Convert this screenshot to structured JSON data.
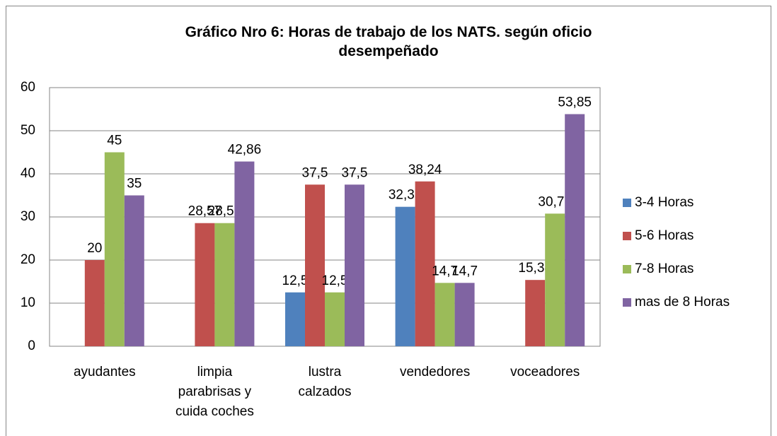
{
  "chart_data": {
    "type": "bar",
    "title": "Gráfico Nro 6: Horas de trabajo de los NATS. según oficio desempeñado",
    "categories": [
      "ayudantes",
      "limpia parabrisas y cuida coches",
      "lustra calzados",
      "vendedores",
      "voceadores"
    ],
    "series": [
      {
        "name": "3-4 Horas",
        "color": "#4f81bd",
        "values": [
          null,
          null,
          12.5,
          32.35,
          null
        ],
        "value_labels": [
          null,
          null,
          "12,5",
          "32,35",
          null
        ]
      },
      {
        "name": "5-6 Horas",
        "color": "#c0504d",
        "values": [
          20,
          28.57,
          37.5,
          38.24,
          15.38
        ],
        "value_labels": [
          "20",
          "28,57",
          "37,5",
          "38,24",
          "15,38"
        ]
      },
      {
        "name": "7-8 Horas",
        "color": "#9bbb59",
        "values": [
          45,
          28.57,
          12.5,
          14.7,
          30.77
        ],
        "value_labels": [
          "45",
          "28,57",
          "12,5",
          "14,7",
          "30,77"
        ]
      },
      {
        "name": "mas de 8 Horas",
        "color": "#8064a2",
        "values": [
          35,
          42.86,
          37.5,
          14.7,
          53.85
        ],
        "value_labels": [
          "35",
          "42,86",
          "37,5",
          "14,7",
          "53,85"
        ]
      }
    ],
    "ylim": [
      0,
      60
    ],
    "yticks": [
      0,
      10,
      20,
      30,
      40,
      50,
      60
    ],
    "grid": true,
    "legend": "right"
  }
}
